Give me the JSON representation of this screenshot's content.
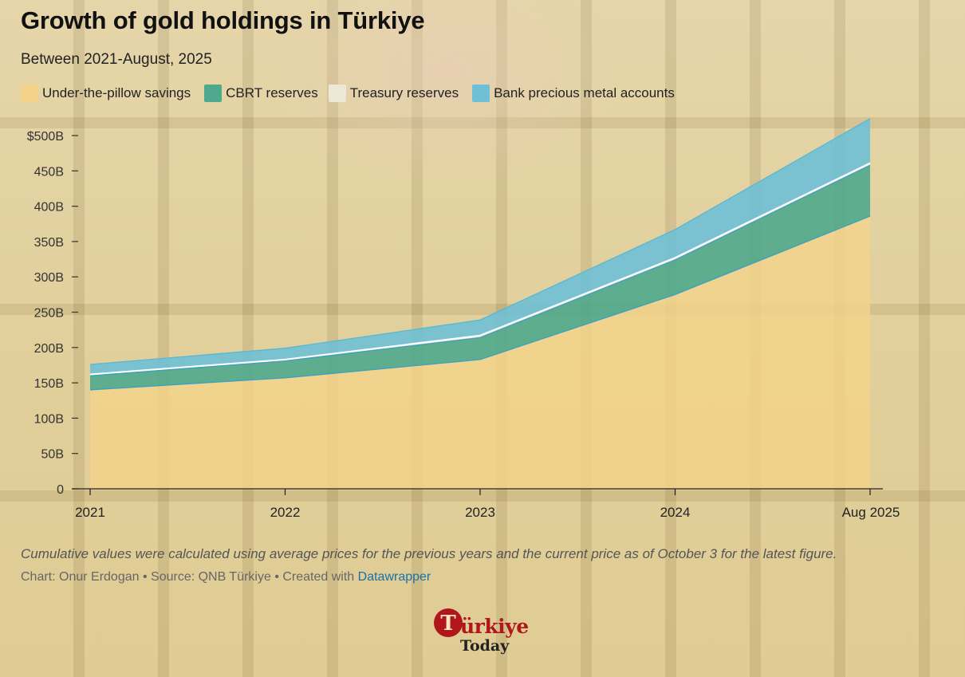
{
  "header": {
    "title": "Growth of gold holdings in Türkiye",
    "subtitle": "Between 2021-August, 2025"
  },
  "legend": [
    {
      "label": "Under-the-pillow savings",
      "color": "#f3d38a"
    },
    {
      "label": "CBRT reserves",
      "color": "#4fa98d"
    },
    {
      "label": "Treasury reserves",
      "color": "#ece7d6"
    },
    {
      "label": "Bank precious metal accounts",
      "color": "#6fc0d6"
    }
  ],
  "chart_data": {
    "type": "area",
    "stacked": true,
    "title": "Growth of gold holdings in Türkiye",
    "subtitle": "Between 2021-August, 2025",
    "x": [
      "2021",
      "2022",
      "2023",
      "2024",
      "Aug 2025"
    ],
    "series": [
      {
        "name": "Under-the-pillow savings",
        "color": "#f3d38a",
        "values": [
          140,
          157,
          183,
          275,
          386
        ]
      },
      {
        "name": "CBRT reserves",
        "color": "#4fa98d",
        "values": [
          20,
          24,
          31,
          49,
          72
        ]
      },
      {
        "name": "Treasury reserves",
        "color": "#ece7d6",
        "values": [
          2,
          2,
          3,
          3,
          3
        ]
      },
      {
        "name": "Bank precious metal accounts",
        "color": "#6fc0d6",
        "values": [
          14,
          16,
          22,
          40,
          63
        ]
      }
    ],
    "y_ticks": [
      "0",
      "50B",
      "100B",
      "150B",
      "200B",
      "250B",
      "300B",
      "350B",
      "400B",
      "450B",
      "$500B"
    ],
    "ylim": [
      0,
      500
    ],
    "grid": false,
    "legend_position": "top"
  },
  "footer": {
    "note": "Cumulative values were calculated using average prices for the previous years and the current price as of October 3 for the latest figure.",
    "credit_prefix": "Chart: Onur Erdogan • Source: QNB Türkiye • Created with ",
    "credit_link": "Datawrapper"
  },
  "logo": {
    "mark": "T",
    "main": "ürkiye",
    "sub": "Today"
  }
}
